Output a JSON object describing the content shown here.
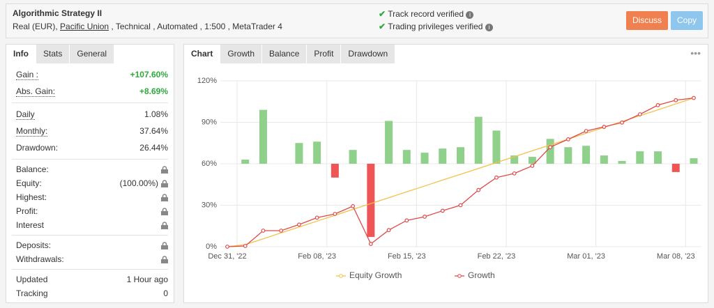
{
  "header": {
    "title": "Algorithmic Strategy II",
    "account": "Real (EUR),",
    "broker": "Pacific Union",
    "details": ", Technical , Automated , 1:500 , MetaTrader 4",
    "verified": [
      "Track record verified",
      "Trading privileges verified"
    ],
    "buttons": [
      "Discuss",
      "Copy"
    ]
  },
  "stats": {
    "tabs": [
      "Info",
      "Stats",
      "General"
    ],
    "groups": [
      [
        {
          "label": "Gain :",
          "value": "+107.60%",
          "underline": true,
          "highlight": true
        },
        {
          "label": "Abs. Gain:",
          "value": "+8.69%",
          "underline": true,
          "highlight": true
        }
      ],
      [
        {
          "label": "Daily",
          "value": "1.08%",
          "underline": true
        },
        {
          "label": "Monthly:",
          "value": "37.64%",
          "underline": true
        },
        {
          "label": "Drawdown:",
          "value": "26.44%"
        }
      ],
      [
        {
          "label": "Balance:",
          "locked": true
        },
        {
          "label": "Equity:",
          "value": "(100.00%)",
          "locked": true
        },
        {
          "label": "Highest:",
          "locked": true
        },
        {
          "label": "Profit:",
          "locked": true
        },
        {
          "label": "Interest",
          "locked": true
        }
      ],
      [
        {
          "label": "Deposits:",
          "locked": true
        },
        {
          "label": "Withdrawals:",
          "locked": true
        }
      ],
      [
        {
          "label": "Updated",
          "value": "1 Hour ago"
        },
        {
          "label": "Tracking",
          "value": "0"
        }
      ]
    ]
  },
  "chart_tabs": [
    "Chart",
    "Growth",
    "Balance",
    "Profit",
    "Drawdown"
  ],
  "chart_data": {
    "type": "line",
    "categories": [
      "Dec 31, '22",
      null,
      null,
      null,
      null,
      "Feb 08, '23",
      null,
      null,
      null,
      null,
      "Feb 15, '23",
      null,
      null,
      null,
      null,
      "Feb 22, '23",
      null,
      null,
      null,
      null,
      "Mar 01, '23",
      null,
      null,
      null,
      null,
      "Mar 08, '23",
      null
    ],
    "ylim": [
      0,
      120
    ],
    "yticks": [
      {
        "value": 0,
        "label": "0%"
      },
      {
        "value": 30,
        "label": "30%"
      },
      {
        "value": 60,
        "label": "60%"
      },
      {
        "value": 90,
        "label": "90%"
      },
      {
        "value": 120,
        "label": "120%"
      }
    ],
    "y2lim": [
      -60,
      60
    ],
    "grid": true,
    "series": [
      {
        "type": "bar",
        "axis": "y2",
        "positive_color": "#8fd18a",
        "negative_color": "#f05555",
        "values": [
          null,
          3,
          39,
          null,
          15,
          16,
          -10,
          10,
          -53,
          31,
          10,
          8,
          11,
          12,
          34,
          24,
          6,
          5,
          18,
          12,
          13,
          6,
          2,
          9,
          9,
          -6,
          4
        ]
      },
      {
        "name": "Equity Growth",
        "color": "#f5c04a",
        "values": [
          0,
          1.5,
          5.7,
          10,
          14.2,
          18.5,
          22.7,
          27,
          31.2,
          35.4,
          39.7,
          43.9,
          48.2,
          52.4,
          56.6,
          60.9,
          65.1,
          69.4,
          73.6,
          77.8,
          82.1,
          86.3,
          90.6,
          94.8,
          99,
          103.3,
          107.6
        ]
      },
      {
        "name": "Growth",
        "color": "#e04848",
        "markers": true,
        "values": [
          0,
          0.5,
          11.6,
          11.6,
          16,
          21,
          23.7,
          29.3,
          2,
          12,
          19,
          21.7,
          26,
          30,
          41,
          50,
          53,
          58.5,
          72,
          77.7,
          83.7,
          86.7,
          89.8,
          95.8,
          102.4,
          106,
          107.6
        ]
      }
    ]
  }
}
